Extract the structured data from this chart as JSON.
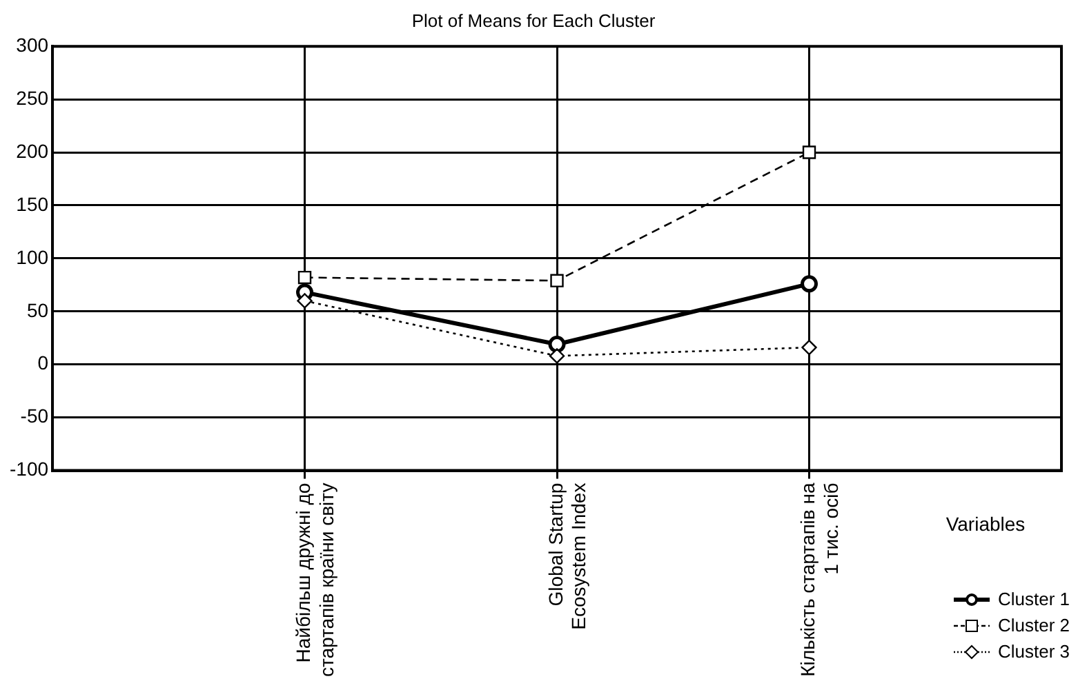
{
  "chart_data": {
    "type": "line",
    "title": "Plot of Means for Each Cluster",
    "xlabel": "Variables",
    "categories": [
      "Найбільш дружні до стартапів країни світу",
      "Global Startup Ecosystem Index",
      "Кількість стартапів на 1 тис. осіб"
    ],
    "series": [
      {
        "name": "Cluster 1",
        "color": "#000000",
        "marker": "circle",
        "line_style": "solid",
        "values": [
          68,
          19,
          76
        ]
      },
      {
        "name": "Cluster 2",
        "color": "#000000",
        "marker": "square",
        "line_style": "dashed",
        "values": [
          82,
          79,
          200
        ]
      },
      {
        "name": "Cluster 3",
        "color": "#000000",
        "marker": "diamond",
        "line_style": "dotted",
        "values": [
          60,
          8,
          16
        ]
      }
    ],
    "ylim": [
      -100,
      300
    ],
    "yticks": [
      -100,
      -50,
      0,
      50,
      100,
      150,
      200,
      250,
      300
    ],
    "grid": true,
    "legend": "bottom right"
  }
}
